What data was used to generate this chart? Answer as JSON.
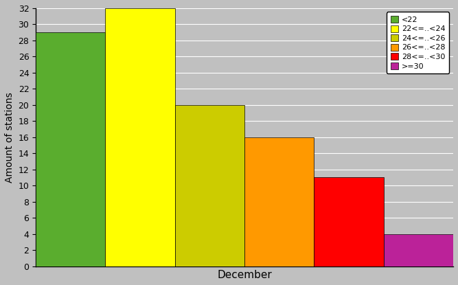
{
  "categories": [
    "<22",
    "22<=..<24",
    "24<=..<26",
    "26<=..<28",
    "28<=..<30",
    ">=30"
  ],
  "values": [
    29,
    32,
    20,
    16,
    11,
    4
  ],
  "bar_colors": [
    "#5aad2e",
    "#ffff00",
    "#cccc00",
    "#ff9900",
    "#ff0000",
    "#bb2299"
  ],
  "xlabel": "December",
  "ylabel": "Amount of stations",
  "ylim": [
    0,
    32
  ],
  "yticks": [
    0,
    2,
    4,
    6,
    8,
    10,
    12,
    14,
    16,
    18,
    20,
    22,
    24,
    26,
    28,
    30,
    32
  ],
  "background_color": "#c0c0c0",
  "legend_labels": [
    "<22",
    "22<=..<24",
    "24<=..<26",
    "26<=..<28",
    "28<=..<30",
    ">=30"
  ],
  "bar_width": 1.0,
  "figsize": [
    6.67,
    4.15
  ],
  "dpi": 100
}
